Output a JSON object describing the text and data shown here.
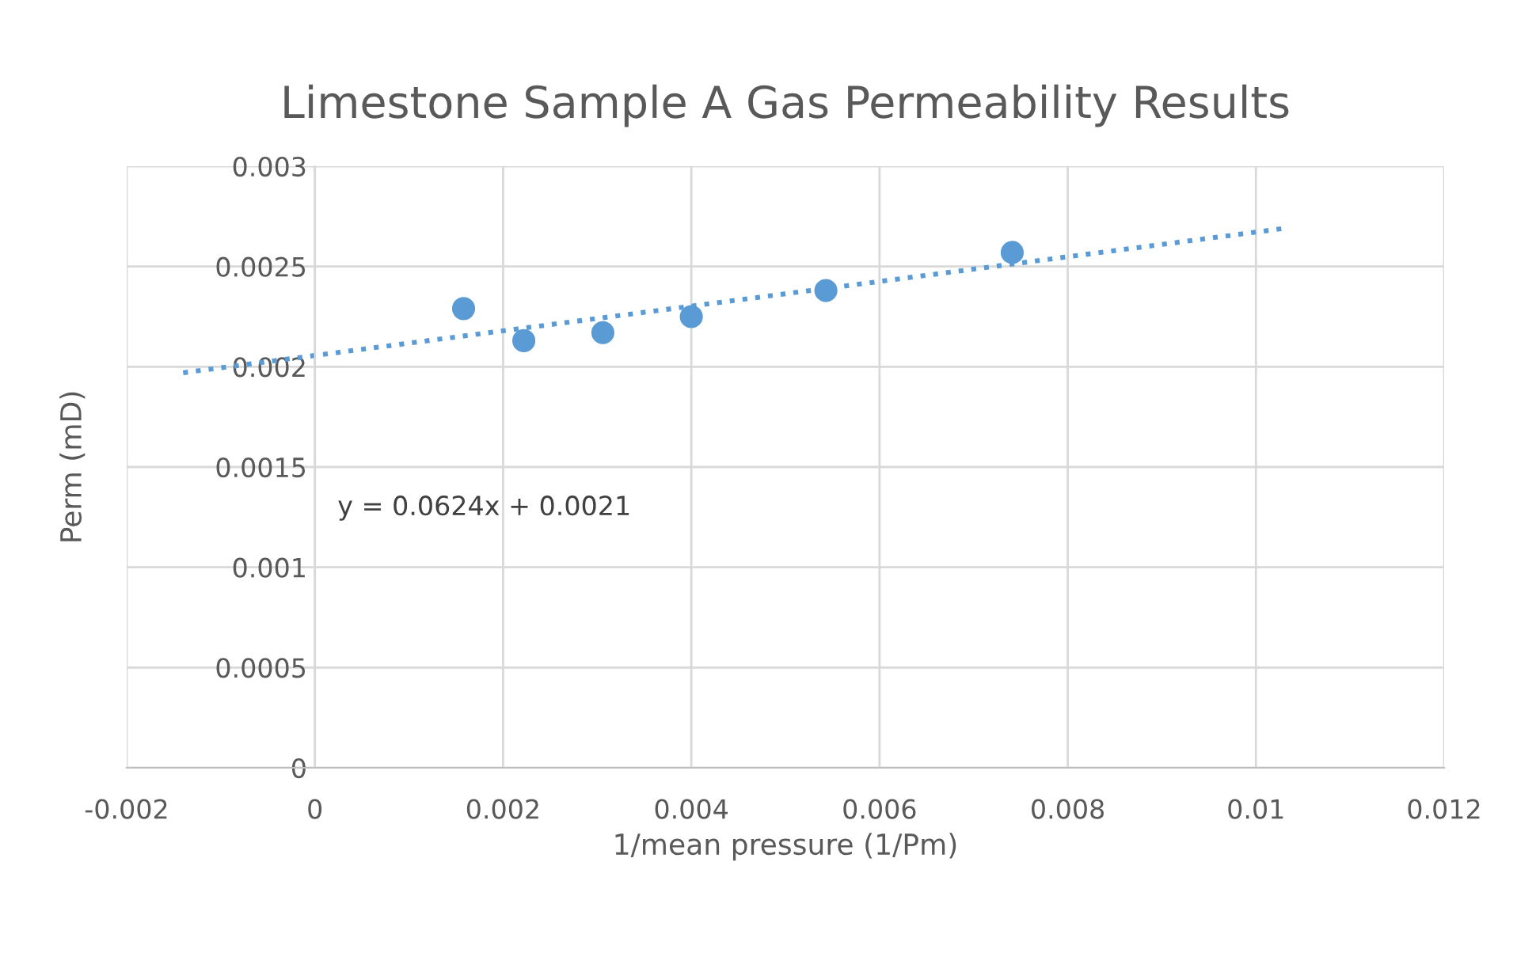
{
  "chart_data": {
    "type": "scatter",
    "title": "Limestone Sample A Gas Permeability Results",
    "xlabel": "1/mean pressure (1/Pm)",
    "ylabel": "Perm (mD)",
    "series": [
      {
        "color": "#5b9bd5",
        "marker": "circle",
        "x": [
          0.00158,
          0.00222,
          0.00306,
          0.004,
          0.00543,
          0.00741
        ],
        "values": [
          0.00229,
          0.00213,
          0.00217,
          0.00225,
          0.00238,
          0.00257
        ]
      },
      {
        "type": "line",
        "color": "#5b9bd5",
        "line_style": "dotted",
        "marker": "none",
        "x": [
          -0.0014,
          0.0103
        ],
        "values": [
          0.00197,
          0.00269
        ]
      }
    ],
    "annotations": [
      "y = 0.0624x + 0.0021"
    ],
    "xlim": [
      -0.002,
      0.012
    ],
    "xticks": [
      -0.002,
      0,
      0.002,
      0.004,
      0.006,
      0.008,
      0.01,
      0.012
    ],
    "ylim": [
      0,
      0.003
    ],
    "yticks": [
      0,
      0.0005,
      0.001,
      0.0015,
      0.002,
      0.0025,
      0.003
    ],
    "grid": true
  }
}
